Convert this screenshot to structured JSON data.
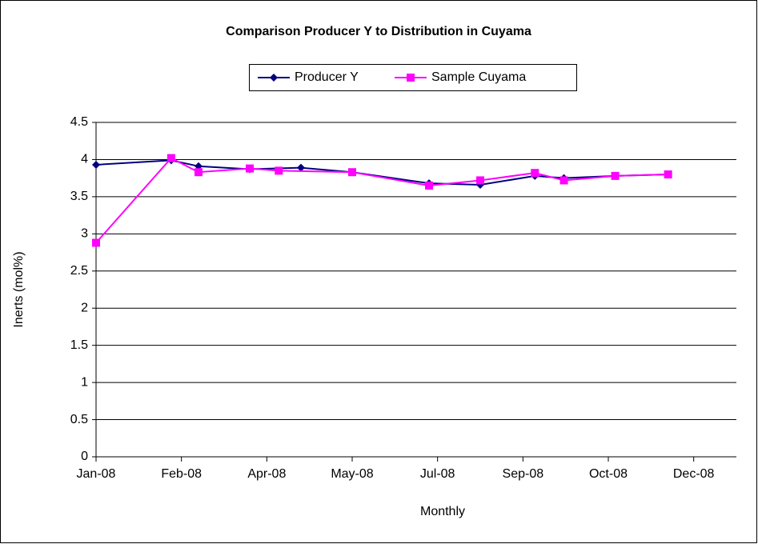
{
  "chart_data": {
    "type": "line",
    "title": "Comparison Producer Y to Distribution in Cuyama",
    "xlabel": "Monthly",
    "ylabel": "Inerts (mol%)",
    "xlim": [
      0,
      375
    ],
    "xticks": [
      {
        "value": 0,
        "label": "Jan-08"
      },
      {
        "value": 50,
        "label": "Feb-08"
      },
      {
        "value": 100,
        "label": "Apr-08"
      },
      {
        "value": 150,
        "label": "May-08"
      },
      {
        "value": 200,
        "label": "Jul-08"
      },
      {
        "value": 250,
        "label": "Sep-08"
      },
      {
        "value": 300,
        "label": "Oct-08"
      },
      {
        "value": 350,
        "label": "Dec-08"
      }
    ],
    "ylim": [
      0,
      4.5
    ],
    "yticks": [
      0,
      0.5,
      1,
      1.5,
      2,
      2.5,
      3,
      3.5,
      4,
      4.5
    ],
    "grid": true,
    "legend": "top",
    "series": [
      {
        "name": "Producer Y",
        "color": "#000080",
        "marker": "diamond",
        "x": [
          0,
          44,
          60,
          90,
          120,
          150,
          195,
          225,
          257,
          274,
          304,
          335
        ],
        "values": [
          3.93,
          3.99,
          3.91,
          3.87,
          3.89,
          3.83,
          3.68,
          3.66,
          3.78,
          3.75,
          3.78,
          3.8
        ]
      },
      {
        "name": "Sample Cuyama",
        "color": "#ff00ff",
        "marker": "square",
        "x": [
          0,
          44,
          60,
          90,
          107,
          150,
          195,
          225,
          257,
          274,
          304,
          335
        ],
        "values": [
          2.88,
          4.02,
          3.83,
          3.88,
          3.85,
          3.83,
          3.65,
          3.72,
          3.82,
          3.72,
          3.78,
          3.8
        ]
      }
    ]
  }
}
